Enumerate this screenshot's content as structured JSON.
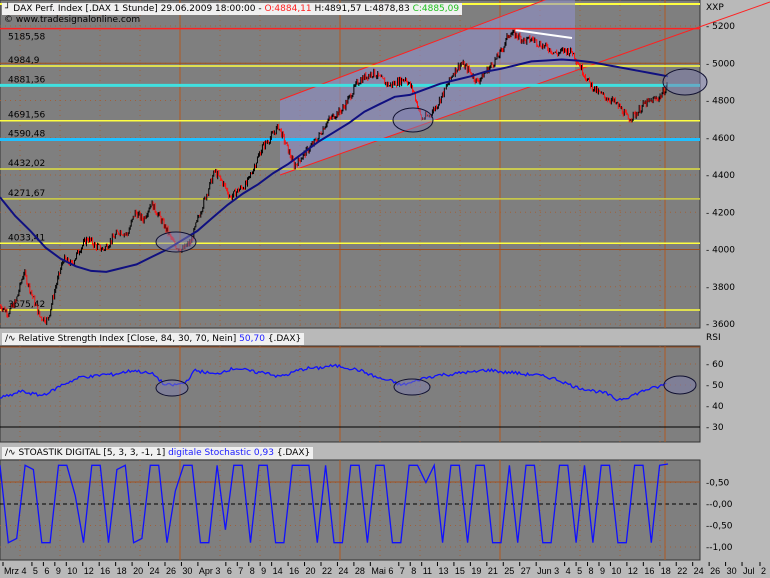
{
  "header": {
    "symbol": "DAX Perf. Index [.DAX  1 Stunde] 29.06.2009 18:00:00 -",
    "open": "O:4884,11",
    "high": "H:4891,57",
    "low": "L:4878,83",
    "close": "C:4885,09",
    "copyright": "© www.tradesignalonline.com",
    "colors": {
      "open": "#ff2020",
      "close": "#20c020"
    }
  },
  "rsi_header": {
    "name": "Relative Strength Index [Close, 84, 30, 70, Nein]",
    "value": "50,70",
    "symbol": "{.DAX}"
  },
  "stoch_header": {
    "name": "STOASTIK DIGITAL [5, 3, 3, -1, 1]",
    "value": "digitale Stochastic 0,93",
    "symbol": "{.DAX}"
  },
  "chart_data": [
    {
      "type": "candlestick-line",
      "panel": "price",
      "axis_label": "XXP",
      "ylim": [
        3600,
        5200
      ],
      "yticks": [
        5200,
        5000,
        4800,
        4600,
        4400,
        4200,
        4000,
        3800,
        3600
      ],
      "close": [
        3700,
        3660,
        3720,
        3880,
        3760,
        3640,
        3620,
        3800,
        3950,
        3920,
        4000,
        4060,
        4020,
        4000,
        4050,
        4100,
        4080,
        4200,
        4160,
        4250,
        4180,
        4100,
        4020,
        4000,
        4040,
        4180,
        4300,
        4420,
        4360,
        4280,
        4320,
        4350,
        4450,
        4550,
        4600,
        4660,
        4560,
        4450,
        4500,
        4550,
        4600,
        4680,
        4720,
        4750,
        4820,
        4900,
        4930,
        4950,
        4910,
        4880,
        4900,
        4920,
        4850,
        4700,
        4720,
        4780,
        4860,
        4950,
        5000,
        4960,
        4900,
        4950,
        5000,
        5060,
        5160,
        5150,
        5120,
        5130,
        5100,
        5080,
        5050,
        5070,
        5060,
        4980,
        4900,
        4850,
        4820,
        4800,
        4760,
        4700,
        4730,
        4780,
        4800,
        4820,
        4885
      ],
      "moving_average": [
        4280,
        4180,
        4100,
        4010,
        3950,
        3910,
        3885,
        3880,
        3900,
        3920,
        3960,
        4000,
        4050,
        4100,
        4170,
        4240,
        4300,
        4350,
        4410,
        4460,
        4520,
        4580,
        4630,
        4680,
        4740,
        4780,
        4820,
        4830,
        4860,
        4890,
        4910,
        4930,
        4955,
        4970,
        4990,
        5010,
        5015,
        5020,
        5015,
        5005,
        4990,
        4975,
        4960,
        4945,
        4930
      ],
      "levels": [
        {
          "value": 5185.58,
          "label": "5185,58",
          "color": "#ff2020"
        },
        {
          "value": 4984.9,
          "label": "4984,9",
          "color": "#ffff40"
        },
        {
          "value": 4881.36,
          "label": "4881,36",
          "color": "#40e0e0"
        },
        {
          "value": 4691.56,
          "label": "4691,56",
          "color": "#ffff40"
        },
        {
          "value": 4590.48,
          "label": "4590,48",
          "color": "#20c0ff"
        },
        {
          "value": 4432.02,
          "label": "4432,02",
          "color": "#e0e040"
        },
        {
          "value": 4271.67,
          "label": "4271,67",
          "color": "#d0d040"
        },
        {
          "value": 4033.41,
          "label": "4033,41",
          "color": "#ffff40"
        },
        {
          "value": 3675.42,
          "label": "3675,42",
          "color": "#ffff40"
        }
      ]
    },
    {
      "type": "line",
      "panel": "rsi",
      "axis_label": "RSI",
      "ylim": [
        20,
        70
      ],
      "yticks": [
        60,
        50,
        40,
        30
      ],
      "values": [
        44,
        45,
        47,
        46,
        45,
        47,
        50,
        52,
        54,
        54,
        55,
        55,
        56,
        57,
        56,
        55,
        50,
        50,
        51,
        57,
        56,
        55,
        57,
        58,
        57,
        56,
        56,
        54,
        55,
        57,
        58,
        58,
        59,
        59,
        58,
        57,
        55,
        53,
        52,
        50,
        51,
        53,
        54,
        55,
        55,
        56,
        56,
        57,
        57,
        56,
        56,
        55,
        55,
        54,
        53,
        51,
        49,
        48,
        47,
        46,
        43,
        44,
        46,
        48,
        49,
        51
      ]
    },
    {
      "type": "line",
      "panel": "stochastic",
      "ylim": [
        -1.2,
        1.2
      ],
      "yticks": [
        "0,50",
        "-0,00",
        "-0,50",
        "-1,00"
      ],
      "values": [
        0.9,
        -0.9,
        -0.8,
        0.9,
        0.8,
        -0.9,
        -0.9,
        0.9,
        0.9,
        0.2,
        -0.9,
        0.9,
        0.9,
        -0.9,
        0.8,
        0.9,
        -0.9,
        -0.8,
        0.9,
        0.9,
        -0.9,
        0.3,
        0.9,
        0.9,
        -0.9,
        -0.9,
        0.9,
        -0.6,
        0.9,
        0.9,
        -0.9,
        0.9,
        0.9,
        -0.9,
        -0.9,
        0.9,
        0.9,
        0.9,
        -0.9,
        0.9,
        -0.9,
        -0.9,
        0.9,
        0.9,
        -0.9,
        0.9,
        0.9,
        -0.9,
        -0.9,
        0.9,
        0.9,
        0.5,
        0.9,
        -0.9,
        0.9,
        0.9,
        -0.9,
        0.9,
        0.9,
        -0.9,
        -0.9,
        0.9,
        -0.9,
        0.9,
        0.9,
        -0.9,
        -0.9,
        0.9,
        0.9,
        -0.9,
        0.9,
        -0.9,
        0.9,
        0.9,
        -0.9,
        -0.9,
        0.9,
        0.9,
        -0.9,
        0.9,
        0.93
      ]
    },
    {
      "type": "axis",
      "panel": "dates",
      "xticks": [
        "Mrz 4",
        "5",
        "6",
        "9",
        "10",
        "12",
        "16",
        "18",
        "20",
        "24",
        "26",
        "30",
        "Apr 3",
        "6",
        "7",
        "8",
        "9",
        "14",
        "16",
        "20",
        "22",
        "24",
        "28",
        "Mai 6",
        "7",
        "8",
        "11",
        "13",
        "15",
        "19",
        "21",
        "25",
        "27",
        "Jun 3",
        "4",
        "5",
        "8",
        "9",
        "10",
        "12",
        "16",
        "18",
        "22",
        "24",
        "26",
        "30",
        "Jul",
        "2"
      ]
    }
  ]
}
